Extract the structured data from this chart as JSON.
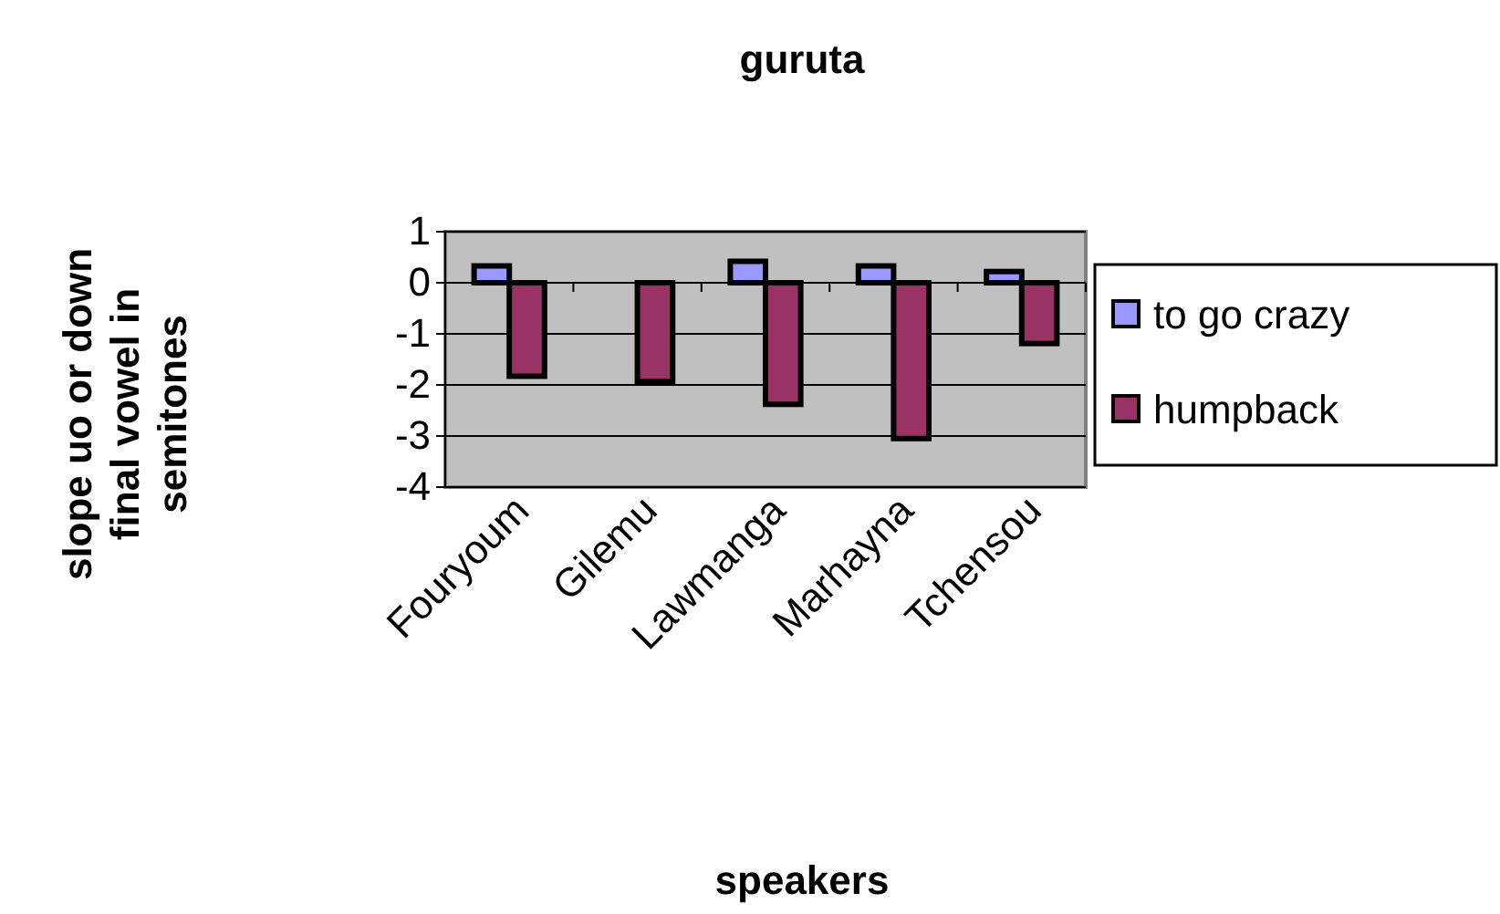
{
  "chart_data": {
    "type": "bar",
    "title": "guruta",
    "xlabel": "speakers",
    "ylabel": "slope uo or down final vowel in semitones",
    "categories": [
      "Fouryoum",
      "Gilemu",
      "Lawmanga",
      "Marhayna",
      "Tchensou"
    ],
    "series": [
      {
        "name": "to go crazy",
        "color": "#9999ff",
        "values": [
          0.33,
          null,
          0.42,
          0.33,
          0.22
        ]
      },
      {
        "name": "humpback",
        "color": "#993366",
        "values": [
          -1.83,
          -1.93,
          -2.38,
          -3.05,
          -1.19
        ]
      }
    ],
    "ylim": [
      -4,
      1
    ],
    "yticks": [
      -4,
      -3,
      -2,
      -1,
      0,
      1
    ],
    "grid": "y",
    "legend": "right"
  }
}
